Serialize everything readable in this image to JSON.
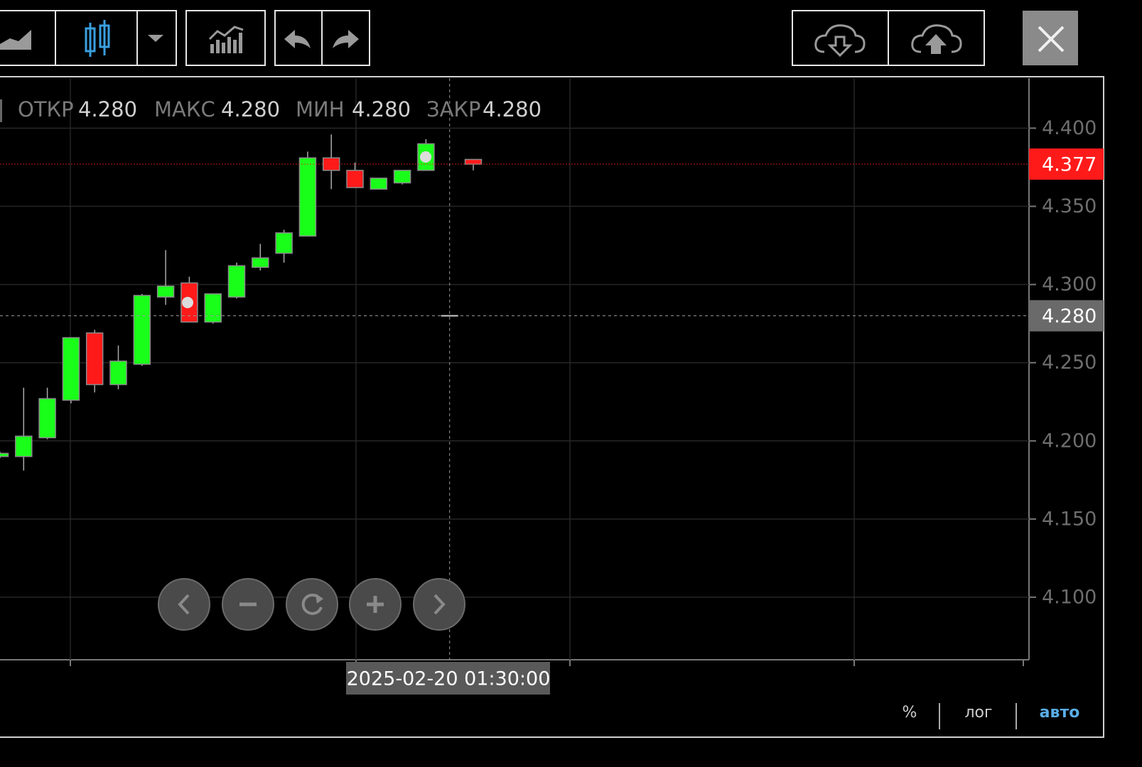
{
  "chart_data": {
    "type": "candlestick",
    "categories": [
      null,
      null,
      null,
      null,
      null,
      null,
      null,
      null,
      null,
      null,
      null,
      null,
      null,
      null,
      null,
      null,
      null,
      null,
      null,
      null,
      null
    ],
    "open": [
      4.19,
      4.19,
      4.202,
      4.226,
      4.269,
      4.236,
      4.249,
      4.292,
      4.301,
      4.276,
      4.292,
      4.311,
      4.32,
      4.331,
      4.381,
      4.373,
      4.361,
      4.365,
      4.373,
      null,
      4.38
    ],
    "high": [
      4.193,
      4.234,
      4.234,
      4.266,
      4.271,
      4.261,
      4.294,
      4.322,
      4.305,
      4.294,
      4.314,
      4.326,
      4.335,
      4.385,
      4.396,
      4.378,
      4.368,
      4.373,
      4.393,
      null,
      4.38
    ],
    "low": [
      4.189,
      4.181,
      4.201,
      4.224,
      4.231,
      4.233,
      4.248,
      4.287,
      4.276,
      4.275,
      4.291,
      4.309,
      4.314,
      4.331,
      4.361,
      4.362,
      4.361,
      4.364,
      4.373,
      null,
      4.373
    ],
    "close": [
      4.192,
      4.203,
      4.227,
      4.266,
      4.236,
      4.251,
      4.293,
      4.299,
      4.276,
      4.294,
      4.312,
      4.317,
      4.333,
      4.381,
      4.373,
      4.362,
      4.368,
      4.373,
      4.39,
      null,
      4.377
    ],
    "up_color": "#1aff1a",
    "down_color": "#ff1a1a",
    "ylim": [
      4.06,
      4.432
    ],
    "yticks": [
      {
        "value": 4.1,
        "label": "4.100"
      },
      {
        "value": 4.15,
        "label": "4.150"
      },
      {
        "value": 4.2,
        "label": "4.200"
      },
      {
        "value": 4.25,
        "label": "4.250"
      },
      {
        "value": 4.3,
        "label": "4.300"
      },
      {
        "value": 4.35,
        "label": "4.350"
      },
      {
        "value": 4.4,
        "label": "4.400"
      }
    ],
    "grid": true,
    "last_price": 4.377,
    "last_price_color": "#ff1a1a",
    "crosshair": {
      "y": {
        "value": 4.28,
        "label": "4.280"
      },
      "x_label": "2025-02-20 01:30:00"
    },
    "ohlc_legend": [
      {
        "label": "ОТКР",
        "value": "4.280"
      },
      {
        "label": "МАКС",
        "value": "4.280"
      },
      {
        "label": "МИН",
        "value": "4.280"
      },
      {
        "label": "ЗАКР",
        "value": "4.280"
      }
    ]
  },
  "scale_buttons": [
    "%",
    "лог",
    "авто"
  ]
}
